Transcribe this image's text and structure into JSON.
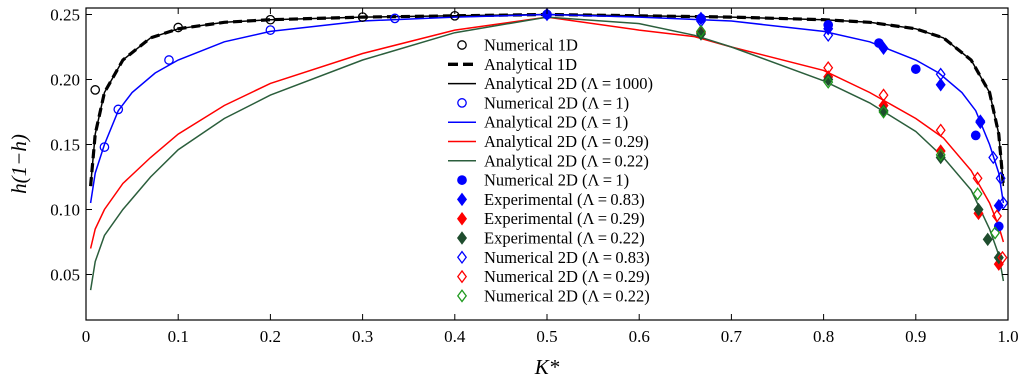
{
  "chart_data": {
    "type": "line",
    "xlabel": "K*",
    "ylabel": "h(1−h)",
    "xlim": [
      0,
      1
    ],
    "ylim": [
      0.015,
      0.255
    ],
    "x_ticks": [
      "0",
      "0.1",
      "0.2",
      "0.3",
      "0.4",
      "0.5",
      "0.6",
      "0.7",
      "0.8",
      "0.9",
      "1.0"
    ],
    "y_ticks": [
      "0.05",
      "0.10",
      "0.15",
      "0.20",
      "0.25"
    ],
    "x_tick_values": [
      0,
      0.1,
      0.2,
      0.3,
      0.4,
      0.5,
      0.6,
      0.7,
      0.8,
      0.9,
      1.0
    ],
    "y_tick_values": [
      0.05,
      0.1,
      0.15,
      0.2,
      0.25
    ],
    "grid": false,
    "legend_position": "center",
    "legend": [
      {
        "label": "Numerical 1D",
        "marker": "circle-open",
        "color": "#000000"
      },
      {
        "label": "Analytical 1D",
        "line": "dashed-thick",
        "color": "#000000"
      },
      {
        "label": "Analytical 2D (Λ = 1000)",
        "line": "solid",
        "color": "#000000"
      },
      {
        "label": "Numerical 2D (Λ = 1)",
        "marker": "circle-open",
        "color": "#0000ff"
      },
      {
        "label": "Analytical 2D (Λ = 1)",
        "line": "solid",
        "color": "#0000ff"
      },
      {
        "label": "Analytical 2D (Λ = 0.29)",
        "line": "solid",
        "color": "#ff0000"
      },
      {
        "label": "Analytical 2D (Λ = 0.22)",
        "line": "solid",
        "color": "#2b5e3c"
      },
      {
        "label": "Numerical 2D (Λ = 1)",
        "marker": "circle-filled",
        "color": "#0000ff"
      },
      {
        "label": "Experimental (Λ = 0.83)",
        "marker": "diamond-filled",
        "color": "#0000ff"
      },
      {
        "label": "Experimental (Λ = 0.29)",
        "marker": "diamond-filled",
        "color": "#ff0000"
      },
      {
        "label": "Experimental (Λ = 0.22)",
        "marker": "diamond-filled",
        "color": "#1f4d2e"
      },
      {
        "label": "Numerical 2D (Λ = 0.83)",
        "marker": "diamond-open",
        "color": "#0000ff"
      },
      {
        "label": "Numerical 2D (Λ = 0.29)",
        "marker": "diamond-open",
        "color": "#ff0000"
      },
      {
        "label": "Numerical 2D (Λ = 0.22)",
        "marker": "diamond-open",
        "color": "#1f9a1f"
      }
    ],
    "lines": [
      {
        "name": "Analytical 1D",
        "color": "#000000",
        "dash": true,
        "points": [
          [
            0.005,
            0.118
          ],
          [
            0.01,
            0.158
          ],
          [
            0.02,
            0.19
          ],
          [
            0.04,
            0.215
          ],
          [
            0.07,
            0.232
          ],
          [
            0.1,
            0.239
          ],
          [
            0.15,
            0.244
          ],
          [
            0.2,
            0.246
          ],
          [
            0.3,
            0.248
          ],
          [
            0.4,
            0.249
          ],
          [
            0.5,
            0.25
          ],
          [
            0.6,
            0.249
          ],
          [
            0.7,
            0.248
          ],
          [
            0.8,
            0.246
          ],
          [
            0.85,
            0.244
          ],
          [
            0.9,
            0.239
          ],
          [
            0.93,
            0.232
          ],
          [
            0.96,
            0.215
          ],
          [
            0.98,
            0.19
          ],
          [
            0.99,
            0.158
          ],
          [
            0.995,
            0.118
          ]
        ]
      },
      {
        "name": "Analytical 2D (Λ = 1000)",
        "color": "#000000",
        "dash": false,
        "points": [
          [
            0.005,
            0.118
          ],
          [
            0.01,
            0.158
          ],
          [
            0.02,
            0.19
          ],
          [
            0.04,
            0.215
          ],
          [
            0.07,
            0.232
          ],
          [
            0.1,
            0.239
          ],
          [
            0.15,
            0.244
          ],
          [
            0.2,
            0.246
          ],
          [
            0.3,
            0.248
          ],
          [
            0.4,
            0.249
          ],
          [
            0.5,
            0.25
          ],
          [
            0.6,
            0.249
          ],
          [
            0.7,
            0.248
          ],
          [
            0.8,
            0.246
          ],
          [
            0.85,
            0.244
          ],
          [
            0.9,
            0.239
          ],
          [
            0.93,
            0.232
          ],
          [
            0.96,
            0.215
          ],
          [
            0.98,
            0.19
          ],
          [
            0.99,
            0.158
          ],
          [
            0.995,
            0.118
          ]
        ]
      },
      {
        "name": "Analytical 2D (Λ = 1)",
        "color": "#0000ff",
        "dash": false,
        "points": [
          [
            0.005,
            0.105
          ],
          [
            0.01,
            0.128
          ],
          [
            0.02,
            0.15
          ],
          [
            0.035,
            0.176
          ],
          [
            0.05,
            0.19
          ],
          [
            0.075,
            0.205
          ],
          [
            0.1,
            0.215
          ],
          [
            0.15,
            0.229
          ],
          [
            0.2,
            0.237
          ],
          [
            0.3,
            0.245
          ],
          [
            0.4,
            0.248
          ],
          [
            0.5,
            0.25
          ],
          [
            0.6,
            0.248
          ],
          [
            0.7,
            0.245
          ],
          [
            0.8,
            0.237
          ],
          [
            0.85,
            0.229
          ],
          [
            0.9,
            0.215
          ],
          [
            0.925,
            0.205
          ],
          [
            0.95,
            0.19
          ],
          [
            0.965,
            0.176
          ],
          [
            0.98,
            0.15
          ],
          [
            0.99,
            0.128
          ],
          [
            0.995,
            0.105
          ]
        ]
      },
      {
        "name": "Analytical 2D (Λ = 0.29)",
        "color": "#ff0000",
        "dash": false,
        "points": [
          [
            0.005,
            0.07
          ],
          [
            0.01,
            0.085
          ],
          [
            0.02,
            0.1
          ],
          [
            0.04,
            0.12
          ],
          [
            0.07,
            0.14
          ],
          [
            0.1,
            0.158
          ],
          [
            0.15,
            0.18
          ],
          [
            0.2,
            0.197
          ],
          [
            0.3,
            0.22
          ],
          [
            0.4,
            0.238
          ],
          [
            0.5,
            0.248
          ],
          [
            0.6,
            0.238
          ],
          [
            0.66,
            0.233
          ],
          [
            0.7,
            0.225
          ],
          [
            0.8,
            0.207
          ],
          [
            0.85,
            0.19
          ],
          [
            0.9,
            0.17
          ],
          [
            0.93,
            0.155
          ],
          [
            0.96,
            0.13
          ],
          [
            0.98,
            0.105
          ],
          [
            0.99,
            0.087
          ],
          [
            0.995,
            0.075
          ]
        ]
      },
      {
        "name": "Analytical 2D (Λ = 0.22)",
        "color": "#2b5e3c",
        "dash": false,
        "points": [
          [
            0.005,
            0.038
          ],
          [
            0.01,
            0.06
          ],
          [
            0.02,
            0.08
          ],
          [
            0.04,
            0.1
          ],
          [
            0.07,
            0.125
          ],
          [
            0.1,
            0.146
          ],
          [
            0.15,
            0.17
          ],
          [
            0.2,
            0.188
          ],
          [
            0.3,
            0.215
          ],
          [
            0.4,
            0.236
          ],
          [
            0.5,
            0.248
          ],
          [
            0.6,
            0.243
          ],
          [
            0.66,
            0.234
          ],
          [
            0.7,
            0.225
          ],
          [
            0.8,
            0.199
          ],
          [
            0.85,
            0.182
          ],
          [
            0.9,
            0.16
          ],
          [
            0.93,
            0.14
          ],
          [
            0.96,
            0.115
          ],
          [
            0.98,
            0.085
          ],
          [
            0.99,
            0.065
          ],
          [
            0.995,
            0.045
          ]
        ]
      }
    ],
    "series": [
      {
        "name": "Numerical 1D",
        "marker": "circle-open",
        "color": "#000000",
        "points": [
          [
            0.01,
            0.192
          ],
          [
            0.1,
            0.24
          ],
          [
            0.2,
            0.246
          ],
          [
            0.3,
            0.248
          ],
          [
            0.4,
            0.249
          ],
          [
            0.5,
            0.25
          ]
        ]
      },
      {
        "name": "Numerical 2D (Λ = 1) open",
        "marker": "circle-open",
        "color": "#0000ff",
        "points": [
          [
            0.02,
            0.148
          ],
          [
            0.035,
            0.177
          ],
          [
            0.09,
            0.215
          ],
          [
            0.2,
            0.238
          ],
          [
            0.335,
            0.247
          ]
        ]
      },
      {
        "name": "Numerical 2D (Λ = 1) filled",
        "marker": "circle-filled",
        "color": "#0000ff",
        "points": [
          [
            0.5,
            0.25
          ],
          [
            0.667,
            0.247
          ],
          [
            0.805,
            0.242
          ],
          [
            0.86,
            0.228
          ],
          [
            0.9,
            0.208
          ],
          [
            0.965,
            0.157
          ],
          [
            0.99,
            0.087
          ]
        ]
      },
      {
        "name": "Experimental (Λ = 0.83)",
        "marker": "diamond-filled",
        "color": "#0000ff",
        "points": [
          [
            0.5,
            0.25
          ],
          [
            0.667,
            0.247
          ],
          [
            0.805,
            0.239
          ],
          [
            0.865,
            0.224
          ],
          [
            0.927,
            0.196
          ],
          [
            0.97,
            0.167
          ],
          [
            0.99,
            0.103
          ]
        ]
      },
      {
        "name": "Experimental (Λ = 0.29)",
        "marker": "diamond-filled",
        "color": "#ff0000",
        "points": [
          [
            0.667,
            0.236
          ],
          [
            0.805,
            0.202
          ],
          [
            0.865,
            0.18
          ],
          [
            0.927,
            0.145
          ],
          [
            0.968,
            0.097
          ],
          [
            0.99,
            0.058
          ]
        ]
      },
      {
        "name": "Experimental (Λ = 0.22)",
        "marker": "diamond-filled",
        "color": "#1f4d2e",
        "points": [
          [
            0.667,
            0.235
          ],
          [
            0.805,
            0.2
          ],
          [
            0.865,
            0.176
          ],
          [
            0.927,
            0.14
          ],
          [
            0.968,
            0.1
          ],
          [
            0.978,
            0.077
          ],
          [
            0.99,
            0.063
          ]
        ]
      },
      {
        "name": "Numerical 2D (Λ = 0.83)",
        "marker": "diamond-open",
        "color": "#0000ff",
        "points": [
          [
            0.667,
            0.245
          ],
          [
            0.805,
            0.234
          ],
          [
            0.927,
            0.204
          ],
          [
            0.97,
            0.168
          ],
          [
            0.984,
            0.14
          ],
          [
            0.992,
            0.124
          ],
          [
            0.995,
            0.105
          ]
        ]
      },
      {
        "name": "Numerical 2D (Λ = 0.29)",
        "marker": "diamond-open",
        "color": "#ff0000",
        "points": [
          [
            0.805,
            0.209
          ],
          [
            0.865,
            0.188
          ],
          [
            0.927,
            0.161
          ],
          [
            0.967,
            0.124
          ],
          [
            0.988,
            0.095
          ],
          [
            0.994,
            0.063
          ]
        ]
      },
      {
        "name": "Numerical 2D (Λ = 0.22)",
        "marker": "diamond-open",
        "color": "#1f9a1f",
        "points": [
          [
            0.667,
            0.237
          ],
          [
            0.805,
            0.198
          ],
          [
            0.865,
            0.175
          ],
          [
            0.927,
            0.142
          ],
          [
            0.967,
            0.112
          ],
          [
            0.986,
            0.082
          ]
        ]
      }
    ]
  }
}
